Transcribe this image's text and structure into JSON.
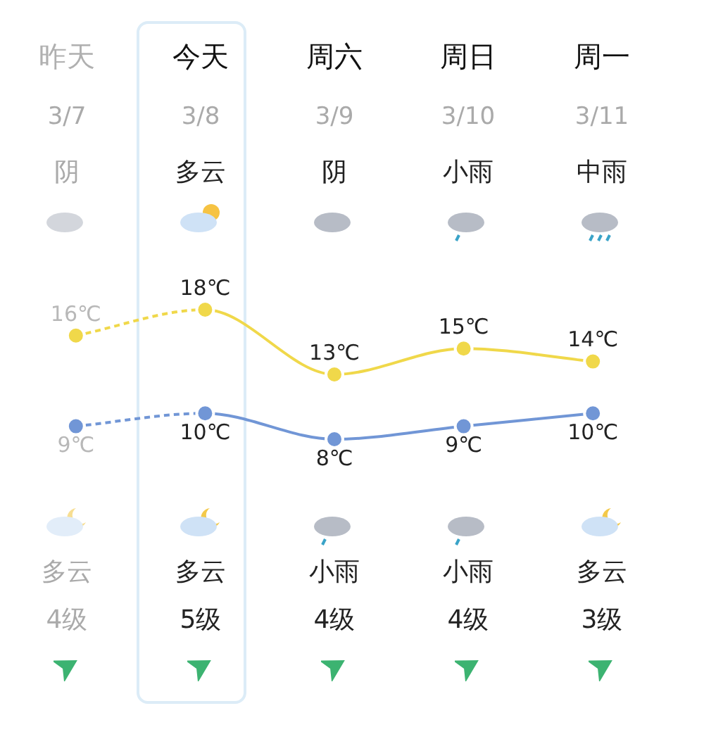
{
  "chart_data": {
    "type": "line",
    "categories": [
      "昨天",
      "今天",
      "周六",
      "周日",
      "周一"
    ],
    "series": [
      {
        "color": "#f0d84a",
        "values": [
          16,
          18,
          13,
          15,
          14
        ],
        "value_labels": [
          "16℃",
          "18℃",
          "13℃",
          "15℃",
          "14℃"
        ]
      },
      {
        "color": "#7196d6",
        "values": [
          9,
          10,
          8,
          9,
          10
        ],
        "value_labels": [
          "9℃",
          "10℃",
          "8℃",
          "9℃",
          "10℃"
        ]
      }
    ],
    "marker": "circle",
    "legend": false,
    "tick_labels": "x",
    "annotations": [
      "3/7",
      "阴",
      "多云",
      "4级",
      "3/8",
      "多云",
      "多云",
      "5级",
      "3/9",
      "阴",
      "小雨",
      "4级",
      "3/10",
      "小雨",
      "小雨",
      "4级",
      "3/11",
      "中雨",
      "多云",
      "3级"
    ]
  }
}
